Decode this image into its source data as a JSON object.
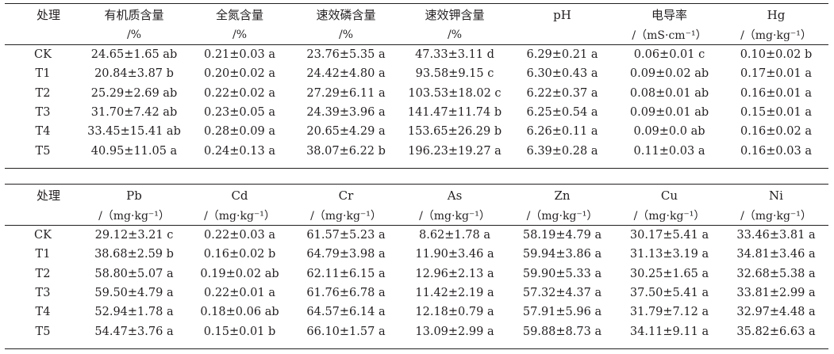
{
  "tables": [
    {
      "header_names": [
        "处理",
        "有机质含量",
        "全氮含量",
        "速效磷含量",
        "速效钾含量",
        "pH",
        "电导率",
        "Hg"
      ],
      "header_units": [
        "",
        "/%",
        "/%",
        "/%",
        "/%",
        "",
        "/（mS·cm⁻¹）",
        "/（mg·kg⁻¹）"
      ],
      "rows": [
        [
          "CK",
          "24.65±1.65 ab",
          "0.21±0.03 a",
          "23.76±5.35 a",
          "47.33±3.11 d",
          "6.29±0.21 a",
          "0.06±0.01 c",
          "0.10±0.02 b"
        ],
        [
          "T1",
          "20.84±3.87 b",
          "0.20±0.02 a",
          "24.42±4.80 a",
          "93.58±9.15 c",
          "6.30±0.43 a",
          "0.09±0.02 ab",
          "0.17±0.01 a"
        ],
        [
          "T2",
          "25.29±2.69 ab",
          "0.22±0.02 a",
          "27.29±6.11 a",
          "103.53±18.02 c",
          "6.22±0.37 a",
          "0.08±0.01 ab",
          "0.16±0.01 a"
        ],
        [
          "T3",
          "31.70±7.42 ab",
          "0.23±0.05 a",
          "24.39±3.96 a",
          "141.47±11.74 b",
          "6.25±0.54 a",
          "0.09±0.01 ab",
          "0.15±0.01 a"
        ],
        [
          "T4",
          "33.45±15.41 ab",
          "0.28±0.09 a",
          "20.65±4.29 a",
          "153.65±26.29 b",
          "6.26±0.11 a",
          "0.09±0.0 ab",
          "0.16±0.02 a"
        ],
        [
          "T5",
          "40.95±11.05 a",
          "0.24±0.13 a",
          "38.07±6.22 b",
          "196.23±19.27 a",
          "6.39±0.28 a",
          "0.11±0.03 a",
          "0.16±0.03 a"
        ]
      ]
    },
    {
      "header_names": [
        "处理",
        "Pb",
        "Cd",
        "Cr",
        "As",
        "Zn",
        "Cu",
        "Ni"
      ],
      "header_units": [
        "",
        "/（mg·kg⁻¹）",
        "/（mg·kg⁻¹）",
        "/（mg·kg⁻¹）",
        "/（mg·kg⁻¹）",
        "/（mg·kg⁻¹）",
        "/（mg·kg⁻¹）",
        "/（mg·kg⁻¹）"
      ],
      "rows": [
        [
          "CK",
          "29.12±3.21 c",
          "0.22±0.03 a",
          "61.57±5.23 a",
          "8.62±1.78 a",
          "58.19±4.79 a",
          "30.17±5.41 a",
          "33.46±3.81 a"
        ],
        [
          "T1",
          "38.68±2.59 b",
          "0.16±0.02 b",
          "64.79±3.98 a",
          "11.90±3.46 a",
          "59.94±3.86 a",
          "31.13±3.19 a",
          "34.81±3.46 a"
        ],
        [
          "T2",
          "58.80±5.07 a",
          "0.19±0.02 ab",
          "62.11±6.15 a",
          "12.96±2.13 a",
          "59.90±5.33 a",
          "30.25±1.65 a",
          "32.68±5.38 a"
        ],
        [
          "T3",
          "59.50±4.79 a",
          "0.22±0.01 a",
          "61.76±6.78 a",
          "11.42±2.19 a",
          "57.32±4.37 a",
          "37.50±5.41 a",
          "33.81±2.99 a"
        ],
        [
          "T4",
          "52.94±1.78 a",
          "0.18±0.06 ab",
          "64.57±6.14 a",
          "12.18±0.79 a",
          "57.91±5.96 a",
          "31.79±7.12 a",
          "32.97±4.48 a"
        ],
        [
          "T5",
          "54.47±3.76 a",
          "0.15±0.01 b",
          "66.10±1.57 a",
          "13.09±2.99 a",
          "59.88±8.73 a",
          "34.11±9.11 a",
          "35.82±6.63 a"
        ]
      ]
    }
  ]
}
